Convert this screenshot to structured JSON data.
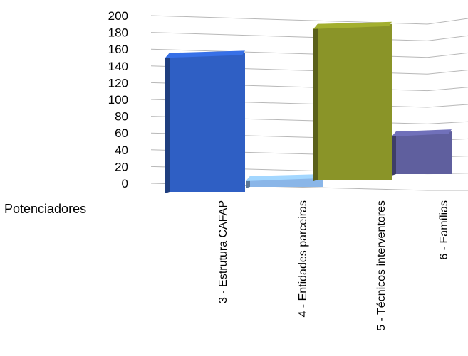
{
  "chart_data": {
    "type": "bar",
    "row_label": "Potenciadores",
    "categories": [
      "3 - Estrutura CAFAP",
      "4 - Entidades parceiras",
      "5 - Técnicos interventores",
      "6 - Famílias"
    ],
    "values": [
      170,
      17,
      190,
      55
    ],
    "colors": [
      "#2f5fc4",
      "#8ab6e8",
      "#8a9428",
      "#5f5f9e"
    ],
    "yticks": [
      0,
      20,
      40,
      60,
      80,
      100,
      120,
      140,
      160,
      180,
      200
    ],
    "ylim": [
      0,
      200
    ],
    "grid": true
  }
}
